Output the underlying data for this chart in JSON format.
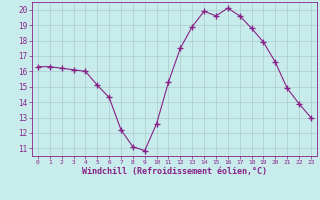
{
  "x": [
    0,
    1,
    2,
    3,
    4,
    5,
    6,
    7,
    8,
    9,
    10,
    11,
    12,
    13,
    14,
    15,
    16,
    17,
    18,
    19,
    20,
    21,
    22,
    23
  ],
  "y": [
    16.3,
    16.3,
    16.2,
    16.1,
    16.0,
    15.1,
    14.3,
    12.2,
    11.1,
    10.85,
    12.6,
    15.3,
    17.5,
    18.9,
    19.9,
    19.6,
    20.1,
    19.6,
    18.8,
    17.9,
    16.6,
    14.9,
    13.9,
    13.0
  ],
  "line_color": "#882288",
  "marker": "+",
  "marker_size": 4,
  "bg_color": "#c8ecec",
  "grid_color": "#aacccc",
  "xlabel": "Windchill (Refroidissement éolien,°C)",
  "ylim": [
    10.5,
    20.5
  ],
  "xlim": [
    -0.5,
    23.5
  ],
  "yticks": [
    11,
    12,
    13,
    14,
    15,
    16,
    17,
    18,
    19,
    20
  ],
  "xticks": [
    0,
    1,
    2,
    3,
    4,
    5,
    6,
    7,
    8,
    9,
    10,
    11,
    12,
    13,
    14,
    15,
    16,
    17,
    18,
    19,
    20,
    21,
    22,
    23
  ],
  "tick_color": "#882288",
  "ytick_fontsize": 5.5,
  "xtick_fontsize": 4.5,
  "xlabel_fontsize": 6.0
}
